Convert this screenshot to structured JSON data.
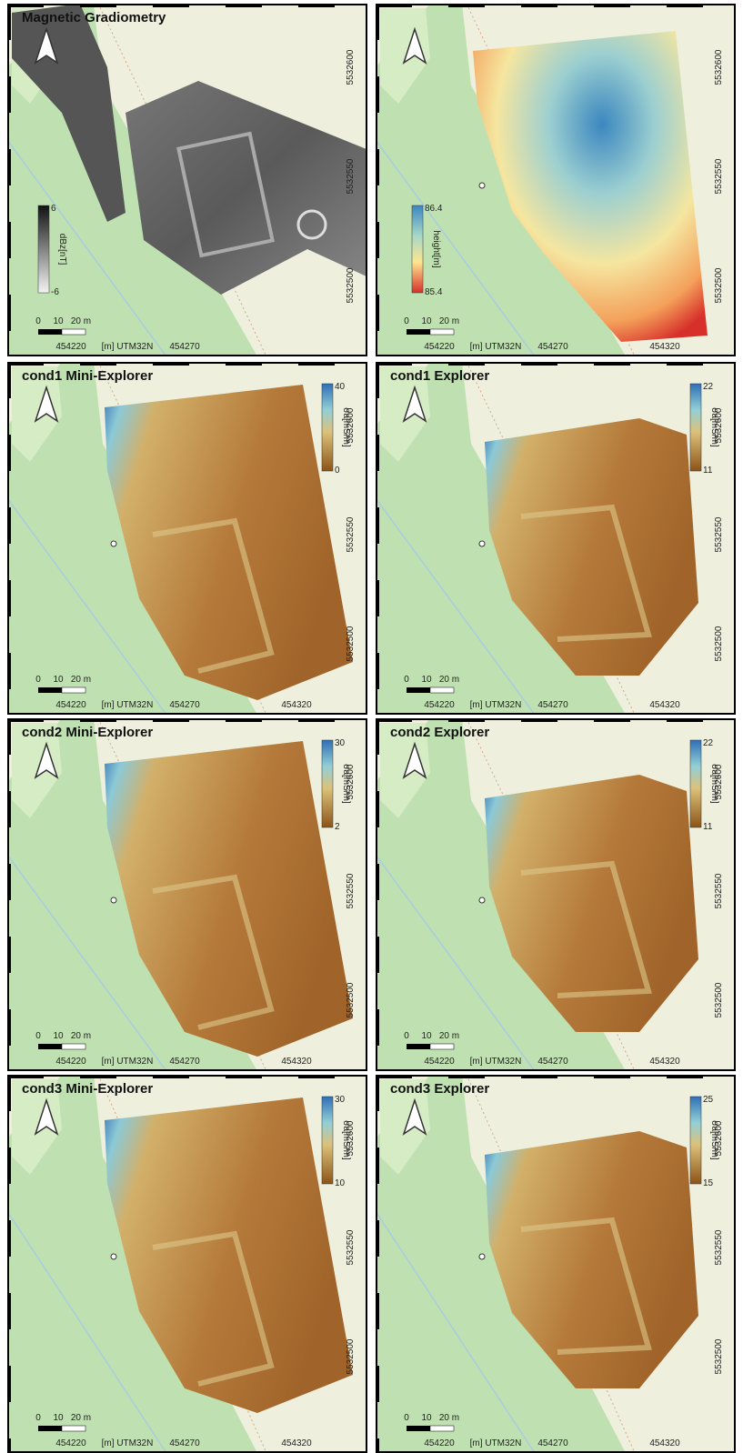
{
  "panels": [
    {
      "title": "Magnetic Gradiometry",
      "colorbar": {
        "label": "dBz[nT]",
        "max": "6",
        "min": "-6"
      },
      "scale": [
        "0",
        "10",
        "20 m"
      ],
      "xlabels": [
        "454220",
        "[m] UTM32N",
        "454270"
      ],
      "ylabels": [
        "5532600",
        "5532550",
        "5532500"
      ]
    },
    {
      "colorbar": {
        "label": "height[m]",
        "max": "86.4",
        "min": "85.4"
      },
      "scale": [
        "0",
        "10",
        "20 m"
      ],
      "xlabels": [
        "454220",
        "[m] UTM32N",
        "454270",
        "454320"
      ],
      "ylabels": [
        "5532600",
        "5532550",
        "5532500"
      ]
    },
    {
      "title": "cond1 Mini-Explorer",
      "colorbar": {
        "label": "σa[mS/m]",
        "max": "40",
        "min": "0"
      },
      "scale": [
        "0",
        "10",
        "20 m"
      ],
      "xlabels": [
        "454220",
        "[m] UTM32N",
        "454270",
        "454320"
      ],
      "ylabels": [
        "5532600",
        "5532550",
        "5532500"
      ]
    },
    {
      "title": "cond1 Explorer",
      "colorbar": {
        "label": "σa[mS/m]",
        "max": "22",
        "min": "11"
      },
      "scale": [
        "0",
        "10",
        "20 m"
      ],
      "xlabels": [
        "454220",
        "[m] UTM32N",
        "454270",
        "454320"
      ],
      "ylabels": [
        "5532600",
        "5532550",
        "5532500"
      ]
    },
    {
      "title": "cond2 Mini-Explorer",
      "colorbar": {
        "label": "σa[mS/m]",
        "max": "30",
        "min": "2"
      },
      "scale": [
        "0",
        "10",
        "20 m"
      ],
      "xlabels": [
        "454220",
        "[m] UTM32N",
        "454270",
        "454320"
      ],
      "ylabels": [
        "5532600",
        "5532550",
        "5532500"
      ]
    },
    {
      "title": "cond2 Explorer",
      "colorbar": {
        "label": "σa[mS/m]",
        "max": "22",
        "min": "11"
      },
      "scale": [
        "0",
        "10",
        "20 m"
      ],
      "xlabels": [
        "454220",
        "[m] UTM32N",
        "454270",
        "454320"
      ],
      "ylabels": [
        "5532600",
        "5532550",
        "5532500"
      ]
    },
    {
      "title": "cond3 Mini-Explorer",
      "colorbar": {
        "label": "σa[mS/m]",
        "max": "30",
        "min": "10"
      },
      "scale": [
        "0",
        "10",
        "20 m"
      ],
      "xlabels": [
        "454220",
        "[m] UTM32N",
        "454270",
        "454320"
      ],
      "ylabels": [
        "5532600",
        "5532550",
        "5532500"
      ]
    },
    {
      "title": "cond3 Explorer",
      "colorbar": {
        "label": "σa[mS/m]",
        "max": "25",
        "min": "15"
      },
      "scale": [
        "0",
        "10",
        "20 m"
      ],
      "xlabels": [
        "454220",
        "[m] UTM32N",
        "454270",
        "454320"
      ],
      "ylabels": [
        "5532600",
        "5532550",
        "5532500"
      ]
    }
  ]
}
